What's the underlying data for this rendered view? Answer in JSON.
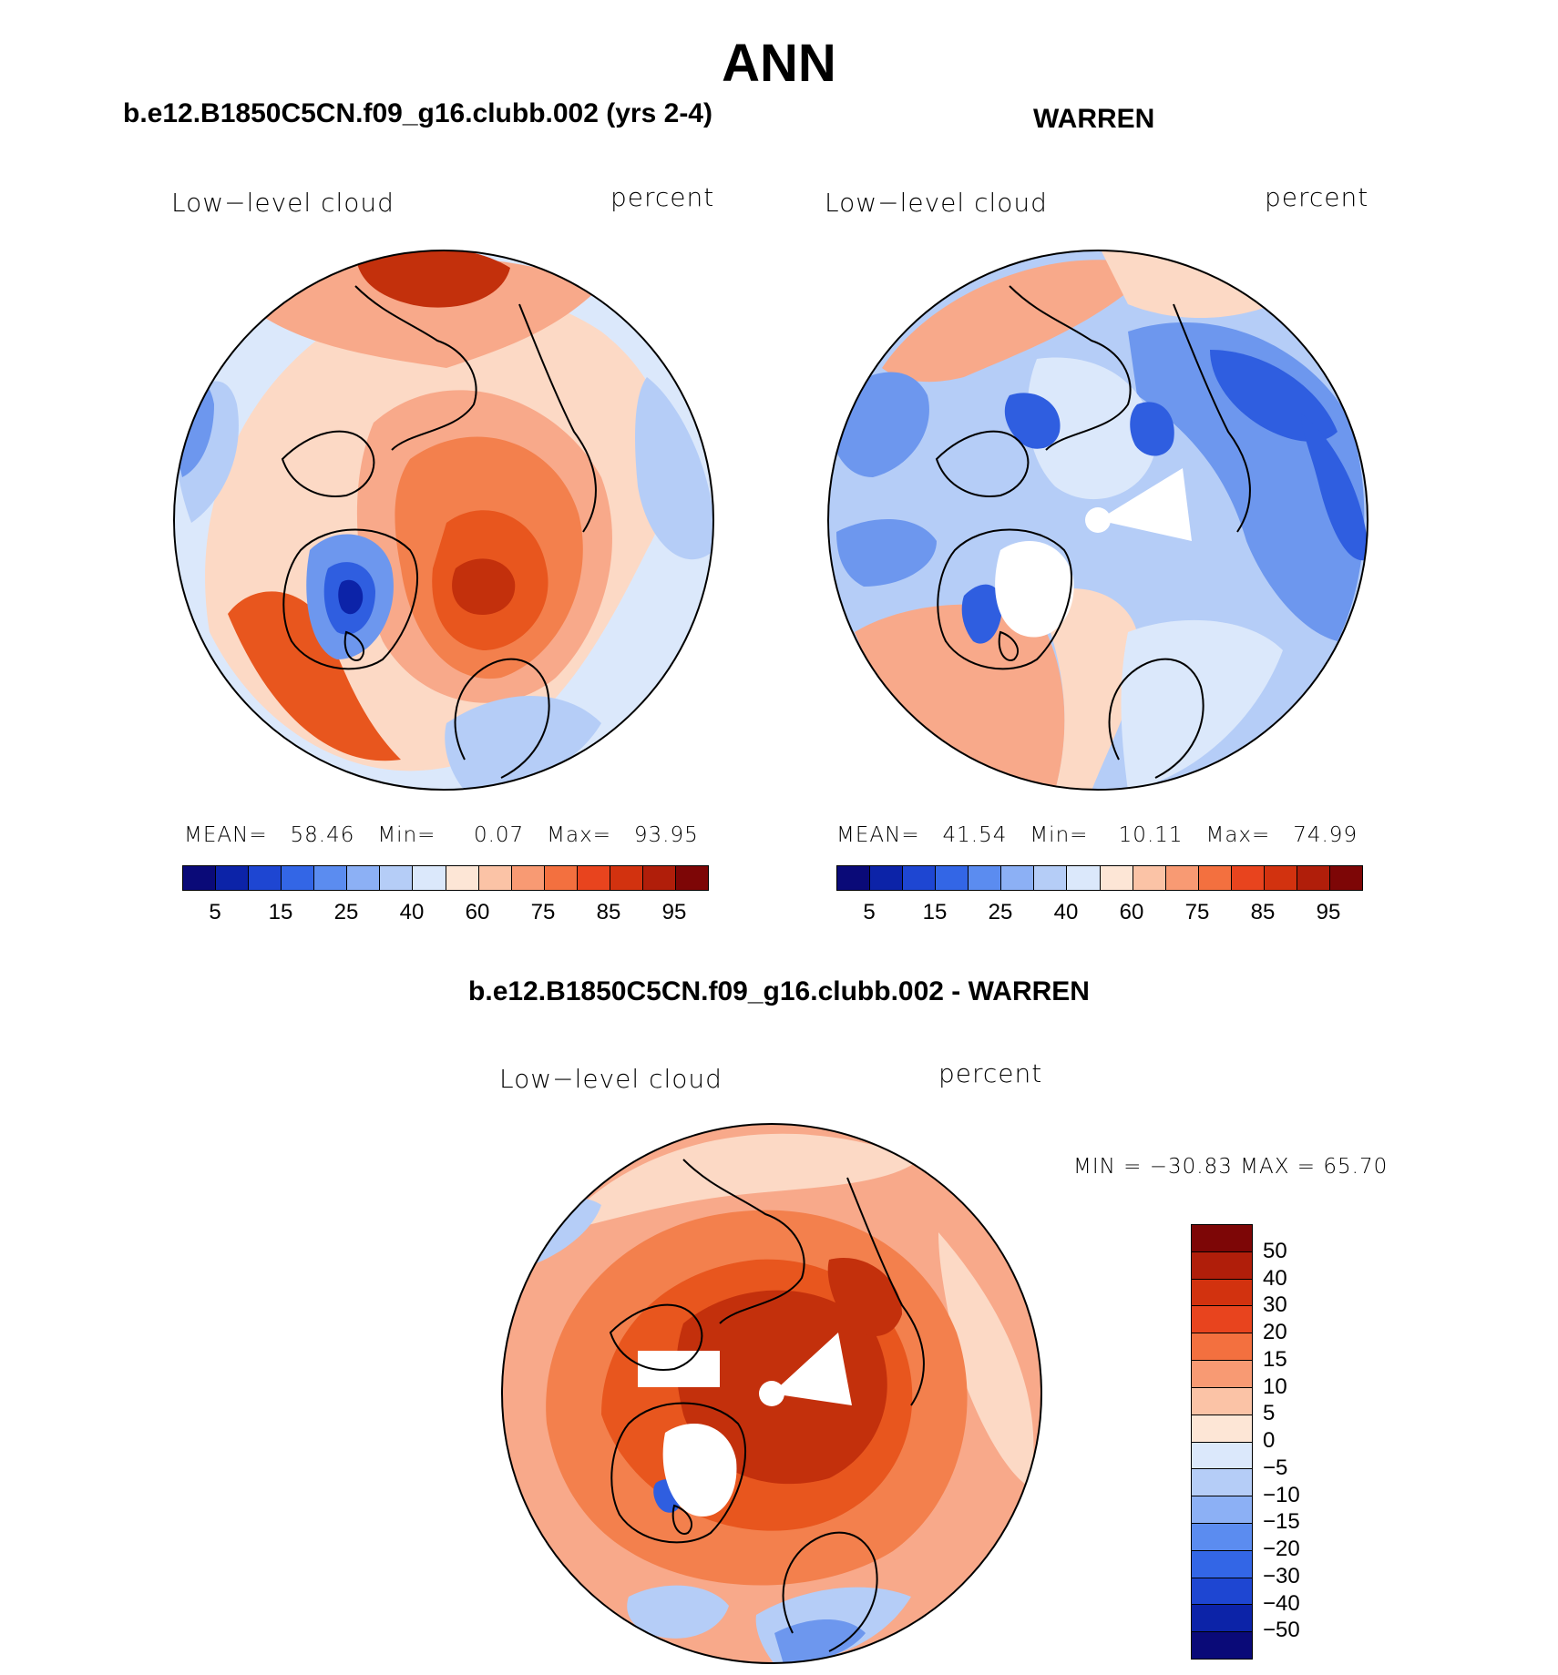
{
  "title": "ANN",
  "panels": [
    {
      "id": "model",
      "case_title": "b.e12.B1850C5CN.f09_g16.clubb.002 (yrs 2-4)",
      "variable": "Low−level cloud",
      "units": "percent",
      "stats": {
        "mean_label": "MEAN=",
        "mean": "58.46",
        "min_label": "Min=",
        "min": "0.07",
        "max_label": "Max=",
        "max": "93.95"
      }
    },
    {
      "id": "obs",
      "case_title": "WARREN",
      "variable": "Low−level cloud",
      "units": "percent",
      "stats": {
        "mean_label": "MEAN=",
        "mean": "41.54",
        "min_label": "Min=",
        "min": "10.11",
        "max_label": "Max=",
        "max": "74.99"
      }
    },
    {
      "id": "diff",
      "case_title": "b.e12.B1850C5CN.f09_g16.clubb.002 - WARREN",
      "variable": "Low−level cloud",
      "units": "percent",
      "stats_line": "MIN = −30.83 MAX =   65.70"
    }
  ],
  "colorbar_abs": {
    "colors": [
      "#0a0a78",
      "#0c23a8",
      "#1e46d2",
      "#3366e6",
      "#5b8cf0",
      "#8cb0f5",
      "#b5cdf7",
      "#dbe8fb",
      "#fde6d6",
      "#fbc3a6",
      "#f89a73",
      "#f3703f",
      "#e8441e",
      "#d2320f",
      "#b01e0a",
      "#7d0606"
    ],
    "tick_labels": [
      "5",
      "15",
      "25",
      "40",
      "60",
      "75",
      "85",
      "95"
    ]
  },
  "colorbar_diff": {
    "colors_top_to_bottom": [
      "#7d0606",
      "#b01e0a",
      "#d2320f",
      "#e8441e",
      "#f3703f",
      "#f89a73",
      "#fbc3a6",
      "#fde6d6",
      "#dbe8fb",
      "#b5cdf7",
      "#8cb0f5",
      "#5b8cf0",
      "#3366e6",
      "#1e46d2",
      "#0c23a8",
      "#0a0a78"
    ],
    "tick_labels": [
      "50",
      "40",
      "30",
      "20",
      "15",
      "10",
      "5",
      "0",
      "−5",
      "−10",
      "−15",
      "−20",
      "−30",
      "−40",
      "−50"
    ]
  },
  "map_colors": {
    "deep_red": "#c3300c",
    "red": "#e8561e",
    "orange": "#f3804d",
    "salmon": "#f8a98a",
    "peach": "#fcd9c5",
    "ice": "#dbe8fb",
    "pale_blue": "#b5cdf7",
    "blue": "#6d97ee",
    "strong_blue": "#2f5ee0",
    "navy": "#0c23a8",
    "missing": "#ffffff",
    "coastline": "#000000"
  }
}
